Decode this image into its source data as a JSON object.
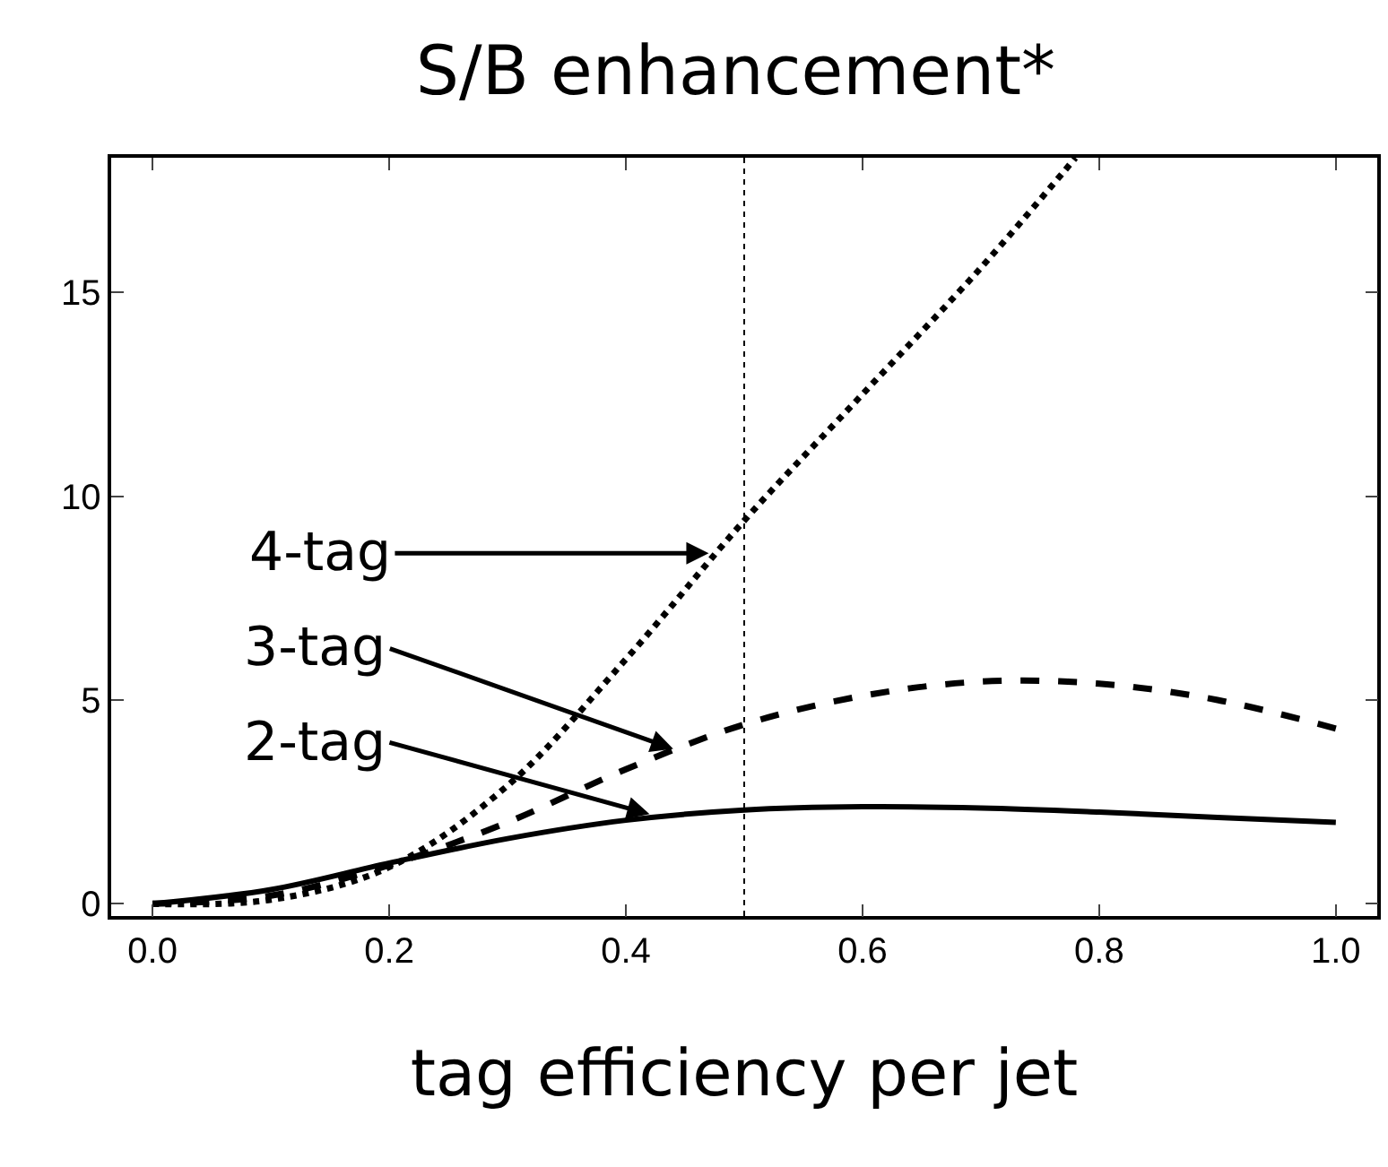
{
  "chart_data": {
    "type": "line",
    "title": "S/B enhancement*",
    "xlabel": "tag efficiency per jet",
    "xlim": [
      -0.035,
      1.035
    ],
    "xticks": [
      {
        "value": 0,
        "label": "0.0"
      },
      0.2,
      0.4,
      0.6,
      0.8,
      {
        "value": 1,
        "label": "1.0"
      }
    ],
    "ylim": [
      -0.3,
      18.3
    ],
    "yticks": [
      0,
      5,
      10,
      15
    ],
    "grid": false,
    "marker": "none",
    "series": [
      {
        "color": "#000000",
        "line_style": "solid",
        "x": [
          0,
          0.1,
          0.2,
          0.3,
          0.4,
          0.5,
          0.6,
          0.7,
          0.8,
          0.9,
          1.0
        ],
        "values": [
          0,
          0.35,
          1.0,
          1.6,
          2.05,
          2.3,
          2.38,
          2.35,
          2.25,
          2.12,
          2.0
        ]
      },
      {
        "color": "#000000",
        "line_style": "dashed",
        "x": [
          0,
          0.1,
          0.2,
          0.3,
          0.4,
          0.5,
          0.6,
          0.7,
          0.8,
          0.9,
          1.0
        ],
        "values": [
          0,
          0.2,
          0.95,
          2.0,
          3.3,
          4.4,
          5.1,
          5.45,
          5.4,
          5.0,
          4.3
        ]
      },
      {
        "color": "#000000",
        "line_style": "dotted",
        "x": [
          0,
          0.1,
          0.2,
          0.3,
          0.4,
          0.5,
          0.6,
          0.7,
          0.78
        ],
        "values": [
          0,
          0.1,
          0.9,
          2.9,
          6.0,
          9.4,
          12.5,
          15.6,
          18.3
        ]
      }
    ],
    "ref_lines": [
      {
        "axis": "x",
        "value": 0.5,
        "line_style": "dotted",
        "color": "#000000"
      }
    ],
    "annotations": [
      {
        "text": "4-tag",
        "x": 0.47,
        "y": 8.6
      },
      {
        "text": "3-tag",
        "x": 0.44,
        "y": 3.8
      },
      {
        "text": "2-tag",
        "x": 0.42,
        "y": 2.2
      }
    ]
  }
}
